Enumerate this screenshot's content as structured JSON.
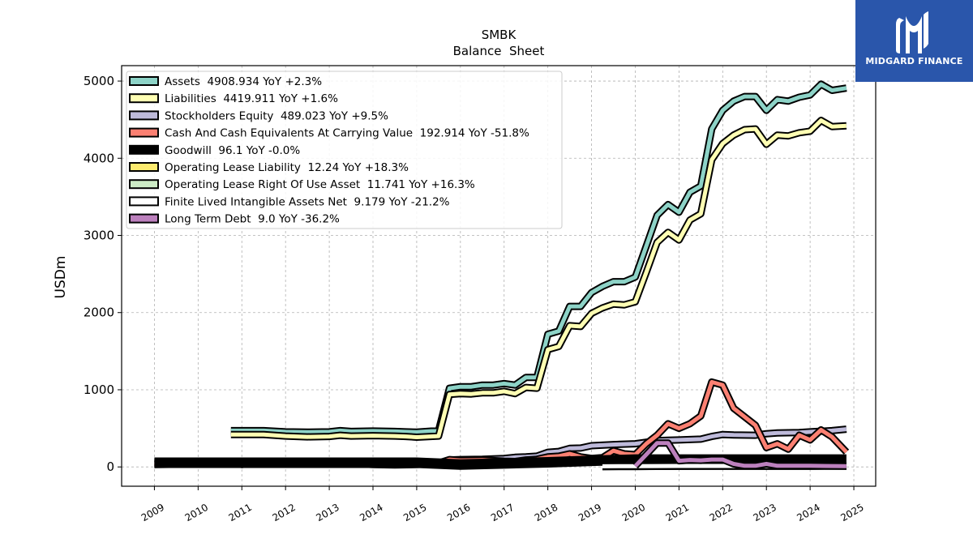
{
  "brand": {
    "name": "MIDGARD FINANCE",
    "logo_icon": "midgard-logo-icon",
    "bg_color": "#2a56ab"
  },
  "chart_data": {
    "type": "line",
    "title": "SMBK",
    "subtitle": "Balance  Sheet",
    "ylabel": "USDm",
    "xlabel": "",
    "ylim": [
      -250,
      5200
    ],
    "xlim": [
      2008.25,
      2025.5
    ],
    "yticks": [
      0,
      1000,
      2000,
      3000,
      4000,
      5000
    ],
    "xticks": [
      "2009",
      "2010",
      "2011",
      "2012",
      "2013",
      "2014",
      "2015",
      "2016",
      "2017",
      "2018",
      "2019",
      "2020",
      "2021",
      "2022",
      "2023",
      "2024",
      "2025"
    ],
    "grid": true,
    "legend_position": "top-left",
    "series": [
      {
        "name": "Assets  4908.934 YoY +2.3%",
        "color": "#8dd3c7",
        "points": [
          [
            2010.75,
            470
          ],
          [
            2011.0,
            470
          ],
          [
            2011.5,
            470
          ],
          [
            2012.0,
            455
          ],
          [
            2012.5,
            450
          ],
          [
            2013.0,
            455
          ],
          [
            2013.25,
            470
          ],
          [
            2013.5,
            460
          ],
          [
            2014.0,
            465
          ],
          [
            2014.5,
            460
          ],
          [
            2014.75,
            455
          ],
          [
            2015.0,
            450
          ],
          [
            2015.5,
            470
          ],
          [
            2015.75,
            1020
          ],
          [
            2016.0,
            1040
          ],
          [
            2016.25,
            1040
          ],
          [
            2016.5,
            1060
          ],
          [
            2016.75,
            1060
          ],
          [
            2017.0,
            1080
          ],
          [
            2017.25,
            1060
          ],
          [
            2017.5,
            1160
          ],
          [
            2017.75,
            1160
          ],
          [
            2018.0,
            1720
          ],
          [
            2018.25,
            1760
          ],
          [
            2018.5,
            2080
          ],
          [
            2018.75,
            2080
          ],
          [
            2019.0,
            2260
          ],
          [
            2019.25,
            2340
          ],
          [
            2019.5,
            2400
          ],
          [
            2019.75,
            2400
          ],
          [
            2020.0,
            2460
          ],
          [
            2020.25,
            2860
          ],
          [
            2020.5,
            3260
          ],
          [
            2020.75,
            3400
          ],
          [
            2021.0,
            3300
          ],
          [
            2021.25,
            3560
          ],
          [
            2021.5,
            3640
          ],
          [
            2021.75,
            4380
          ],
          [
            2022.0,
            4620
          ],
          [
            2022.25,
            4740
          ],
          [
            2022.5,
            4800
          ],
          [
            2022.75,
            4800
          ],
          [
            2023.0,
            4620
          ],
          [
            2023.25,
            4760
          ],
          [
            2023.5,
            4740
          ],
          [
            2023.75,
            4790
          ],
          [
            2024.0,
            4820
          ],
          [
            2024.25,
            4960
          ],
          [
            2024.5,
            4880
          ],
          [
            2024.83,
            4909
          ]
        ]
      },
      {
        "name": "Liabilities  4419.911 YoY +1.6%",
        "color": "#ffffb3",
        "points": [
          [
            2010.75,
            420
          ],
          [
            2011.0,
            420
          ],
          [
            2011.5,
            420
          ],
          [
            2012.0,
            400
          ],
          [
            2012.5,
            390
          ],
          [
            2013.0,
            395
          ],
          [
            2013.25,
            410
          ],
          [
            2013.5,
            400
          ],
          [
            2014.0,
            405
          ],
          [
            2014.5,
            400
          ],
          [
            2014.75,
            395
          ],
          [
            2015.0,
            385
          ],
          [
            2015.5,
            400
          ],
          [
            2015.75,
            940
          ],
          [
            2016.0,
            950
          ],
          [
            2016.25,
            945
          ],
          [
            2016.5,
            960
          ],
          [
            2016.75,
            960
          ],
          [
            2017.0,
            980
          ],
          [
            2017.25,
            950
          ],
          [
            2017.5,
            1030
          ],
          [
            2017.75,
            1020
          ],
          [
            2018.0,
            1520
          ],
          [
            2018.25,
            1560
          ],
          [
            2018.5,
            1830
          ],
          [
            2018.75,
            1820
          ],
          [
            2019.0,
            1990
          ],
          [
            2019.25,
            2060
          ],
          [
            2019.5,
            2110
          ],
          [
            2019.75,
            2100
          ],
          [
            2020.0,
            2140
          ],
          [
            2020.25,
            2520
          ],
          [
            2020.5,
            2910
          ],
          [
            2020.75,
            3040
          ],
          [
            2021.0,
            2940
          ],
          [
            2021.25,
            3200
          ],
          [
            2021.5,
            3280
          ],
          [
            2021.75,
            3980
          ],
          [
            2022.0,
            4190
          ],
          [
            2022.25,
            4300
          ],
          [
            2022.5,
            4370
          ],
          [
            2022.75,
            4380
          ],
          [
            2023.0,
            4180
          ],
          [
            2023.25,
            4300
          ],
          [
            2023.5,
            4290
          ],
          [
            2023.75,
            4330
          ],
          [
            2024.0,
            4350
          ],
          [
            2024.25,
            4490
          ],
          [
            2024.5,
            4410
          ],
          [
            2024.83,
            4420
          ]
        ]
      },
      {
        "name": "Stockholders Equity  489.023 YoY +9.5%",
        "color": "#bebada",
        "points": [
          [
            2015.75,
            90
          ],
          [
            2016.0,
            95
          ],
          [
            2016.5,
            100
          ],
          [
            2017.0,
            110
          ],
          [
            2017.25,
            125
          ],
          [
            2017.5,
            130
          ],
          [
            2017.75,
            140
          ],
          [
            2018.0,
            190
          ],
          [
            2018.25,
            200
          ],
          [
            2018.5,
            240
          ],
          [
            2018.75,
            245
          ],
          [
            2019.0,
            275
          ],
          [
            2019.5,
            290
          ],
          [
            2020.0,
            300
          ],
          [
            2020.25,
            320
          ],
          [
            2020.5,
            340
          ],
          [
            2020.75,
            345
          ],
          [
            2021.0,
            350
          ],
          [
            2021.5,
            360
          ],
          [
            2021.75,
            395
          ],
          [
            2022.0,
            420
          ],
          [
            2022.25,
            415
          ],
          [
            2022.75,
            410
          ],
          [
            2023.0,
            430
          ],
          [
            2023.25,
            440
          ],
          [
            2023.75,
            445
          ],
          [
            2024.0,
            455
          ],
          [
            2024.5,
            470
          ],
          [
            2024.83,
            489
          ]
        ]
      },
      {
        "name": "Cash And Cash Equivalents At Carrying Value  192.914 YoY -51.8%",
        "color": "#fb8072",
        "points": [
          [
            2009.0,
            30
          ],
          [
            2009.5,
            35
          ],
          [
            2010.0,
            45
          ],
          [
            2010.5,
            55
          ],
          [
            2010.75,
            65
          ],
          [
            2011.0,
            30
          ],
          [
            2011.25,
            55
          ],
          [
            2011.5,
            45
          ],
          [
            2012.0,
            55
          ],
          [
            2012.5,
            50
          ],
          [
            2013.0,
            55
          ],
          [
            2013.25,
            75
          ],
          [
            2013.5,
            45
          ],
          [
            2014.0,
            30
          ],
          [
            2014.5,
            25
          ],
          [
            2015.0,
            30
          ],
          [
            2015.5,
            50
          ],
          [
            2015.75,
            95
          ],
          [
            2016.0,
            85
          ],
          [
            2016.5,
            90
          ],
          [
            2017.0,
            75
          ],
          [
            2017.25,
            70
          ],
          [
            2017.5,
            90
          ],
          [
            2017.75,
            100
          ],
          [
            2018.0,
            130
          ],
          [
            2018.25,
            140
          ],
          [
            2018.5,
            170
          ],
          [
            2018.75,
            130
          ],
          [
            2019.0,
            110
          ],
          [
            2019.25,
            120
          ],
          [
            2019.5,
            210
          ],
          [
            2019.75,
            170
          ],
          [
            2020.0,
            160
          ],
          [
            2020.25,
            300
          ],
          [
            2020.5,
            410
          ],
          [
            2020.75,
            560
          ],
          [
            2021.0,
            500
          ],
          [
            2021.25,
            560
          ],
          [
            2021.5,
            660
          ],
          [
            2021.75,
            1100
          ],
          [
            2022.0,
            1060
          ],
          [
            2022.25,
            760
          ],
          [
            2022.5,
            650
          ],
          [
            2022.75,
            540
          ],
          [
            2023.0,
            250
          ],
          [
            2023.25,
            300
          ],
          [
            2023.5,
            230
          ],
          [
            2023.75,
            410
          ],
          [
            2024.0,
            350
          ],
          [
            2024.25,
            480
          ],
          [
            2024.5,
            390
          ],
          [
            2024.83,
            193
          ]
        ]
      },
      {
        "name": "Goodwill  96.1 YoY -0.0%",
        "color": "#000000",
        "points": [
          [
            2009.0,
            55
          ],
          [
            2015.0,
            55
          ],
          [
            2016.0,
            30
          ],
          [
            2017.0,
            45
          ],
          [
            2018.0,
            60
          ],
          [
            2019.0,
            80
          ],
          [
            2020.0,
            96
          ],
          [
            2024.83,
            96
          ]
        ]
      },
      {
        "name": "Operating Lease Liability  12.24 YoY +18.3%",
        "color": "#fdeb6f",
        "points": [
          [
            2019.25,
            5
          ],
          [
            2020.0,
            6
          ],
          [
            2021.0,
            9
          ],
          [
            2022.0,
            10
          ],
          [
            2023.0,
            10
          ],
          [
            2024.0,
            11
          ],
          [
            2024.83,
            12
          ]
        ]
      },
      {
        "name": "Operating Lease Right Of Use Asset  11.741 YoY +16.3%",
        "color": "#ccebc5",
        "points": [
          [
            2019.25,
            5
          ],
          [
            2020.0,
            6
          ],
          [
            2021.0,
            8
          ],
          [
            2022.0,
            9
          ],
          [
            2023.0,
            10
          ],
          [
            2024.0,
            10
          ],
          [
            2024.83,
            12
          ]
        ]
      },
      {
        "name": "Finite Lived Intangible Assets Net  9.179 YoY -21.2%",
        "color": "#ffffff",
        "points": [
          [
            2019.25,
            8
          ],
          [
            2020.0,
            10
          ],
          [
            2021.0,
            12
          ],
          [
            2022.0,
            12
          ],
          [
            2023.0,
            11
          ],
          [
            2024.0,
            10
          ],
          [
            2024.83,
            9
          ]
        ]
      },
      {
        "name": "Long Term Debt  9.0 YoY -36.2%",
        "color": "#bc80bd",
        "points": [
          [
            2020.0,
            10
          ],
          [
            2020.25,
            160
          ],
          [
            2020.5,
            310
          ],
          [
            2020.75,
            310
          ],
          [
            2021.0,
            80
          ],
          [
            2021.25,
            90
          ],
          [
            2021.5,
            85
          ],
          [
            2021.75,
            95
          ],
          [
            2022.0,
            95
          ],
          [
            2022.25,
            40
          ],
          [
            2022.5,
            15
          ],
          [
            2022.75,
            15
          ],
          [
            2023.0,
            40
          ],
          [
            2023.25,
            15
          ],
          [
            2024.0,
            15
          ],
          [
            2024.83,
            9
          ]
        ]
      }
    ]
  }
}
